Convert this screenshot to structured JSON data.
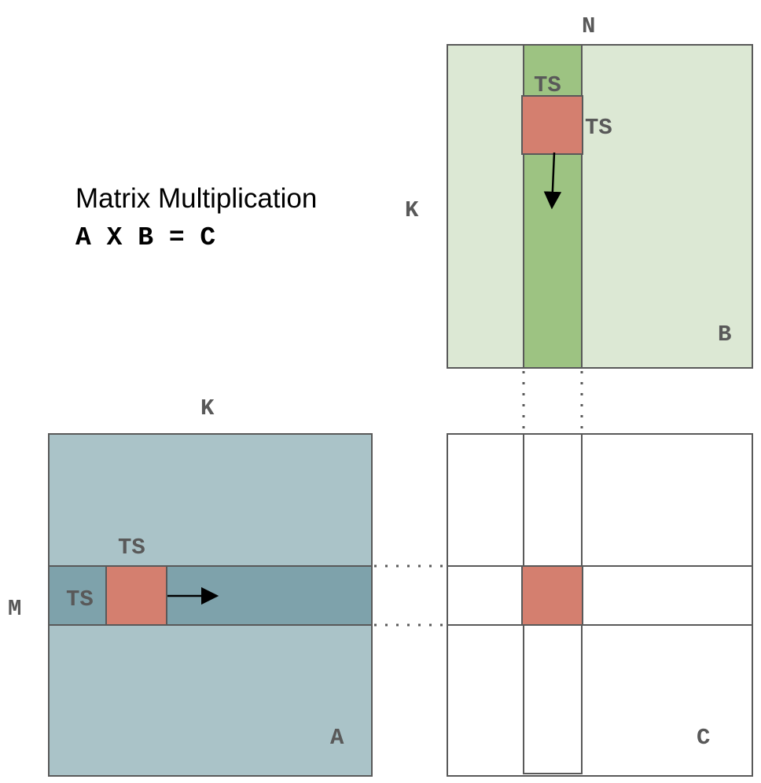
{
  "title": "Matrix Multiplication",
  "formula": "A X B = C",
  "colors": {
    "matrix_a_fill": "#aac3c8",
    "matrix_a_strip": "#7ea2ab",
    "matrix_b_fill": "#dce8d4",
    "matrix_b_strip": "#9dc382",
    "tile_fill": "#d47f6f",
    "matrix_c_fill": "#ffffff",
    "border": "#595959"
  },
  "matrix_a": {
    "name": "A",
    "top_dim": "K",
    "left_dim": "M",
    "tile_top_label": "TS",
    "tile_left_label": "TS"
  },
  "matrix_b": {
    "name": "B",
    "top_dim": "N",
    "left_dim": "K",
    "tile_top_label": "TS",
    "tile_right_label": "TS"
  },
  "matrix_c": {
    "name": "C"
  }
}
